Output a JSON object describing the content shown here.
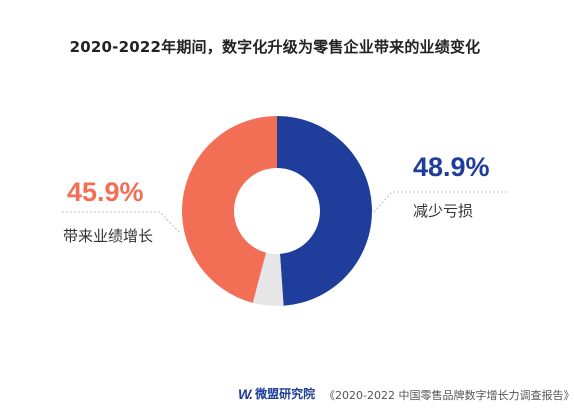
{
  "chart_data": {
    "type": "pie",
    "variant": "donut",
    "title": "2020-2022年期间，数字化升级为零售企业带来的业绩变化",
    "slices": [
      {
        "label": "减少亏损",
        "value": 48.9,
        "display": "48.9%",
        "color": "#1f3d9a"
      },
      {
        "label": "",
        "value": 5.2,
        "display": "",
        "color": "#e6e6e8"
      },
      {
        "label": "带来业绩增长",
        "value": 45.9,
        "display": "45.9%",
        "color": "#f26e55"
      }
    ],
    "legend": "none"
  },
  "footer": {
    "logo_mark": "W.",
    "logo_text": "微盟研究院",
    "source": "《2020-2022 中国零售品牌数字增长力调查报告》"
  }
}
